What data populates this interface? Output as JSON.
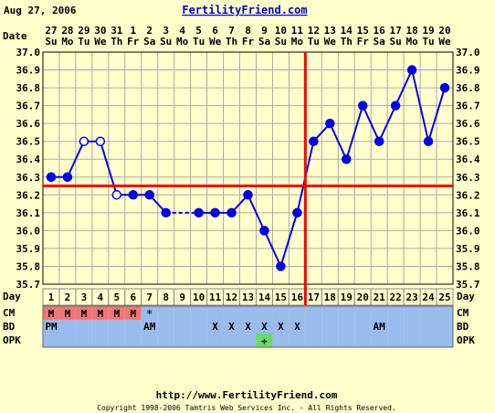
{
  "header": {
    "date": "Aug 27, 2006",
    "site": "FertilityFriend.com"
  },
  "footer": {
    "url": "http://www.FertilityFriend.com",
    "copyright": "Copyright 1998-2006 Tamtris Web Services Inc. - All Rights Reserved."
  },
  "row_labels": {
    "date": "Date",
    "day": "Day",
    "cm": "CM",
    "bd": "BD",
    "opk": "OPK"
  },
  "colors": {
    "background": "#ffffcc",
    "grid": "#aaaaaa",
    "line": "#0000ee",
    "coverline": "#ff0000",
    "strip": "#99bbee",
    "menses": "#ee7777",
    "opk_positive": "#66dd66"
  },
  "chart_data": {
    "type": "line",
    "title": "",
    "xlabel": "Day",
    "ylabel": "",
    "ylim": [
      35.7,
      37.0
    ],
    "yticks": [
      "37.0",
      "36.9",
      "36.8",
      "36.7",
      "36.6",
      "36.5",
      "36.4",
      "36.3",
      "36.2",
      "36.1",
      "36.0",
      "35.9",
      "35.8",
      "35.7"
    ],
    "dates": [
      "27",
      "28",
      "29",
      "30",
      "31",
      "1",
      "2",
      "3",
      "4",
      "5",
      "6",
      "7",
      "8",
      "9",
      "10",
      "11",
      "12",
      "13",
      "14",
      "15",
      "16",
      "17",
      "18",
      "19",
      "20"
    ],
    "weekdays": [
      "Su",
      "Mo",
      "Tu",
      "We",
      "Th",
      "Fr",
      "Sa",
      "Su",
      "Mo",
      "Tu",
      "We",
      "Th",
      "Fr",
      "Sa",
      "Su",
      "Mo",
      "Tu",
      "We",
      "Th",
      "Fr",
      "Sa",
      "Su",
      "Mo",
      "Tu",
      "We"
    ],
    "days": [
      "1",
      "2",
      "3",
      "4",
      "5",
      "6",
      "7",
      "8",
      "9",
      "10",
      "11",
      "12",
      "13",
      "14",
      "15",
      "16",
      "17",
      "18",
      "19",
      "20",
      "21",
      "22",
      "23",
      "24",
      "25"
    ],
    "series": [
      {
        "values": [
          36.3,
          36.3,
          36.5,
          36.5,
          36.2,
          36.2,
          36.2,
          36.1,
          null,
          36.1,
          36.1,
          36.1,
          36.2,
          36.0,
          35.8,
          36.1,
          36.5,
          36.6,
          36.4,
          36.7,
          36.5,
          36.7,
          36.9,
          36.5,
          36.8
        ],
        "open_points": [
          3,
          4,
          5
        ]
      }
    ],
    "coverline": 36.25,
    "ovulation_day": 16,
    "cm": [
      "M",
      "M",
      "M",
      "M",
      "M",
      "M",
      "*",
      "",
      "",
      "",
      "",
      "",
      "",
      "",
      "",
      "",
      "",
      "",
      "",
      "",
      "",
      "",
      "",
      "",
      ""
    ],
    "bd": [
      "PM",
      "",
      "",
      "",
      "",
      "",
      "AM",
      "",
      "",
      "",
      "X",
      "X",
      "X",
      "X",
      "X",
      "X",
      "",
      "",
      "",
      "",
      "AM",
      "",
      "",
      "",
      ""
    ],
    "opk": [
      "",
      "",
      "",
      "",
      "",
      "",
      "",
      "",
      "",
      "",
      "",
      "",
      "",
      "+",
      "",
      "",
      "",
      "",
      "",
      "",
      "",
      "",
      "",
      "",
      ""
    ]
  }
}
